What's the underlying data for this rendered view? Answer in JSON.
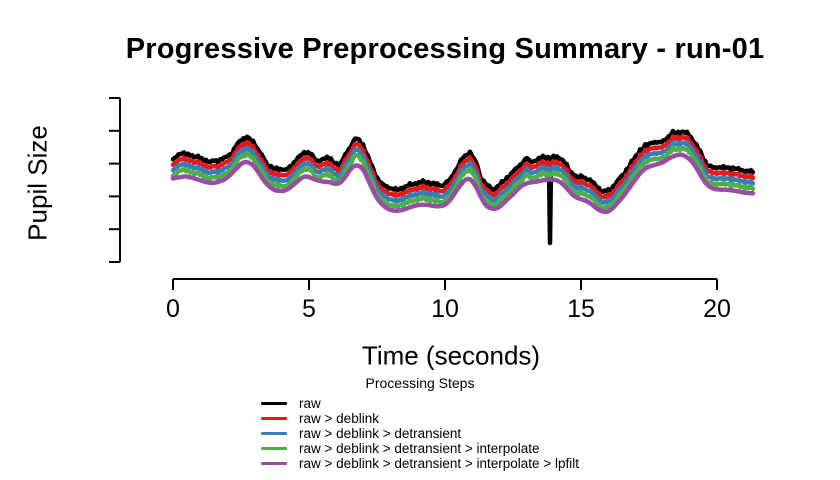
{
  "chart_data": {
    "type": "line",
    "title": "Progressive Preprocessing Summary - run-01",
    "xlabel": "Time (seconds)",
    "ylabel": "Pupil Size",
    "x_ticks": [
      0,
      5,
      10,
      15,
      20
    ],
    "xlim": [
      0,
      21.4
    ],
    "ylim": [
      0,
      165
    ],
    "y_axis_unlabeled": true,
    "y_tick_count": 6,
    "y_unit": "arbitrary pupil-size units (axis has ticks but no numeric labels)",
    "grid": false,
    "legend": {
      "title": "Processing Steps",
      "position": "bottom-center"
    },
    "x": [
      0,
      0.26,
      0.63,
      0.99,
      1.36,
      1.73,
      2.1,
      2.46,
      2.72,
      2.94,
      3.2,
      3.46,
      3.68,
      3.93,
      4.3,
      4.67,
      5.04,
      5.29,
      5.66,
      5.88,
      6.14,
      6.4,
      6.62,
      6.76,
      6.99,
      7.24,
      7.5,
      7.72,
      7.98,
      8.24,
      8.46,
      8.71,
      8.97,
      9.19,
      9.45,
      9.71,
      9.93,
      10.18,
      10.44,
      10.66,
      10.92,
      11.18,
      11.29,
      11.54,
      11.76,
      12.02,
      12.28,
      12.5,
      12.76,
      13.01,
      13.13,
      13.38,
      13.6,
      13.86,
      14.12,
      14.34,
      14.6,
      14.85,
      15.07,
      15.33,
      15.59,
      15.81,
      16.07,
      16.32,
      16.54,
      16.8,
      17.06,
      17.17,
      17.43,
      17.65,
      17.9,
      18.16,
      18.38,
      18.64,
      18.9,
      19.12,
      19.38,
      19.63,
      19.85,
      20.11,
      20.37,
      20.59,
      20.85,
      21.1,
      21.32
    ],
    "base_values": [
      102,
      109,
      107,
      104,
      100,
      102,
      107,
      121,
      125,
      120,
      110,
      97,
      94,
      92,
      94,
      107,
      110,
      100,
      105,
      100,
      97,
      110,
      120,
      124,
      117,
      100,
      84,
      77,
      74,
      72,
      74,
      77,
      79,
      80,
      79,
      77,
      77,
      82,
      94,
      104,
      110,
      97,
      85,
      77,
      72,
      77,
      84,
      90,
      97,
      104,
      100,
      102,
      105,
      104,
      105,
      102,
      90,
      85,
      85,
      82,
      75,
      70,
      72,
      80,
      87,
      97,
      107,
      112,
      117,
      120,
      119,
      124,
      129,
      130,
      129,
      122,
      110,
      97,
      94,
      95,
      94,
      94,
      92,
      91,
      90
    ],
    "series": [
      {
        "name": "raw",
        "short": "raw",
        "color": "#000000",
        "offset": 0,
        "noisy": true,
        "blink_spike": {
          "time": 13.86,
          "min_value": 19
        }
      },
      {
        "name": "raw > deblink",
        "short": "deblink",
        "color": "#E41A1C",
        "offset": -5.5,
        "noisy": true
      },
      {
        "name": "raw > deblink > detransient",
        "short": "detransient",
        "color": "#377EB8",
        "offset": -11,
        "noisy": true
      },
      {
        "name": "raw > deblink > detransient > interpolate",
        "short": "interpolate",
        "color": "#4DAF4A",
        "offset": -16.5,
        "noisy": true
      },
      {
        "name": "raw > deblink > detransient > interpolate > lpfilt",
        "short": "lpfilt",
        "color": "#984EA3",
        "offset": -22,
        "noisy": false,
        "smoothed": true
      }
    ]
  }
}
